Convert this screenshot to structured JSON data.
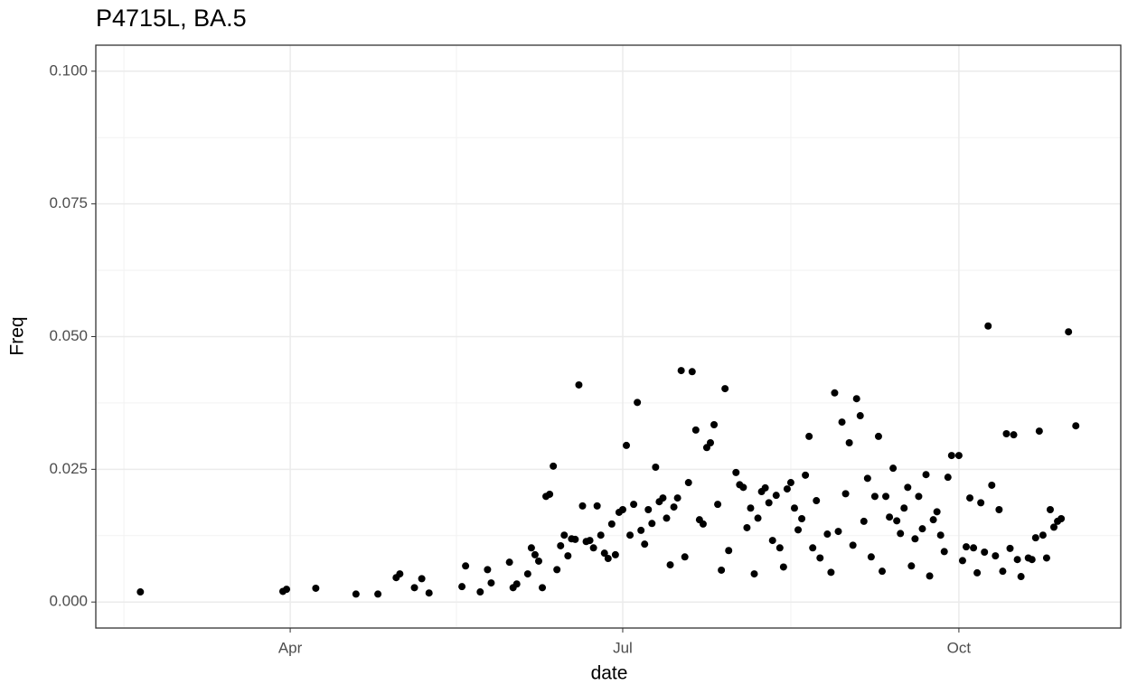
{
  "chart_data": {
    "type": "scatter",
    "title": "P4715L, BA.5",
    "x_label": "date",
    "y_label": "Freq",
    "color": "#000000",
    "grid": true,
    "xlim": [
      37.8,
      318.3
    ],
    "ylim": [
      -0.0049,
      0.1049
    ],
    "xticks": [
      {
        "value": 91,
        "label": "Apr"
      },
      {
        "value": 182,
        "label": "Jul"
      },
      {
        "value": 274,
        "label": "Oct"
      }
    ],
    "yticks": [
      {
        "value": 0,
        "label": "0.000"
      },
      {
        "value": 0.025,
        "label": "0.025"
      },
      {
        "value": 0.05,
        "label": "0.050"
      },
      {
        "value": 0.075,
        "label": "0.075"
      },
      {
        "value": 0.1,
        "label": "0.100"
      }
    ],
    "x_minor_ticks": [
      45.5,
      136.5,
      228
    ],
    "y_minor_ticks": [
      0.0125,
      0.0375,
      0.0625,
      0.0875
    ],
    "x": [
      50,
      89,
      90,
      98,
      109,
      115,
      120,
      121,
      125,
      127,
      129,
      138,
      139,
      143,
      145,
      146,
      151,
      152,
      153,
      156,
      157,
      158,
      159,
      160,
      161,
      162,
      163,
      164,
      165,
      166,
      167,
      168,
      169,
      170,
      171,
      172,
      173,
      174,
      175,
      176,
      177,
      178,
      179,
      180,
      181,
      182,
      183,
      184,
      185,
      186,
      187,
      188,
      189,
      190,
      191,
      192,
      193,
      194,
      195,
      196,
      197,
      198,
      199,
      200,
      201,
      202,
      203,
      204,
      205,
      206,
      207,
      208,
      209,
      210,
      211,
      213,
      214,
      215,
      216,
      217,
      218,
      219,
      220,
      221,
      222,
      223,
      224,
      225,
      226,
      227,
      228,
      229,
      230,
      231,
      232,
      233,
      234,
      235,
      236,
      238,
      239,
      240,
      241,
      242,
      243,
      244,
      245,
      246,
      247,
      248,
      249,
      250,
      251,
      252,
      253,
      254,
      255,
      256,
      257,
      258,
      259,
      260,
      261,
      262,
      263,
      264,
      265,
      266,
      267,
      268,
      269,
      270,
      271,
      272,
      274,
      275,
      276,
      277,
      278,
      279,
      280,
      281,
      282,
      283,
      284,
      285,
      286,
      287,
      288,
      289,
      290,
      291,
      293,
      294,
      295,
      296,
      297,
      298,
      299,
      300,
      301,
      302,
      304,
      306
    ],
    "values": [
      0.0019,
      0.002,
      0.0024,
      0.0026,
      0.0015,
      0.0015,
      0.0046,
      0.0053,
      0.0027,
      0.0044,
      0.0017,
      0.0029,
      0.0068,
      0.0019,
      0.0061,
      0.0036,
      0.0075,
      0.0027,
      0.0034,
      0.0053,
      0.0102,
      0.0089,
      0.0077,
      0.0027,
      0.0199,
      0.0203,
      0.0256,
      0.0061,
      0.0106,
      0.0126,
      0.0087,
      0.0119,
      0.0118,
      0.0409,
      0.0181,
      0.0114,
      0.0116,
      0.0102,
      0.0181,
      0.0126,
      0.0092,
      0.0082,
      0.0147,
      0.0089,
      0.0169,
      0.0174,
      0.0295,
      0.0126,
      0.0184,
      0.0376,
      0.0135,
      0.0109,
      0.0174,
      0.0148,
      0.0254,
      0.0189,
      0.0196,
      0.0158,
      0.007,
      0.0179,
      0.0196,
      0.0436,
      0.0085,
      0.0225,
      0.0434,
      0.0324,
      0.0155,
      0.0147,
      0.0291,
      0.03,
      0.0334,
      0.0184,
      0.006,
      0.0402,
      0.0097,
      0.0244,
      0.0221,
      0.0216,
      0.014,
      0.0177,
      0.0053,
      0.0158,
      0.0208,
      0.0215,
      0.0187,
      0.0116,
      0.0201,
      0.0102,
      0.0066,
      0.0213,
      0.0225,
      0.0177,
      0.0136,
      0.0157,
      0.0239,
      0.0312,
      0.0102,
      0.0191,
      0.0083,
      0.0128,
      0.0056,
      0.0394,
      0.0133,
      0.0339,
      0.0204,
      0.03,
      0.0107,
      0.0383,
      0.0351,
      0.0152,
      0.0233,
      0.0085,
      0.0199,
      0.0312,
      0.0058,
      0.0199,
      0.016,
      0.0252,
      0.0153,
      0.0129,
      0.0177,
      0.0216,
      0.0068,
      0.0119,
      0.0199,
      0.0138,
      0.024,
      0.0049,
      0.0155,
      0.017,
      0.0126,
      0.0095,
      0.0235,
      0.0276,
      0.0276,
      0.0078,
      0.0104,
      0.0196,
      0.0102,
      0.0055,
      0.0187,
      0.0094,
      0.052,
      0.022,
      0.0087,
      0.0174,
      0.0058,
      0.0317,
      0.0101,
      0.0315,
      0.008,
      0.0048,
      0.0083,
      0.008,
      0.0121,
      0.0322,
      0.0126,
      0.0083,
      0.0174,
      0.0141,
      0.0152,
      0.0157,
      0.0509,
      0.0332
    ]
  }
}
